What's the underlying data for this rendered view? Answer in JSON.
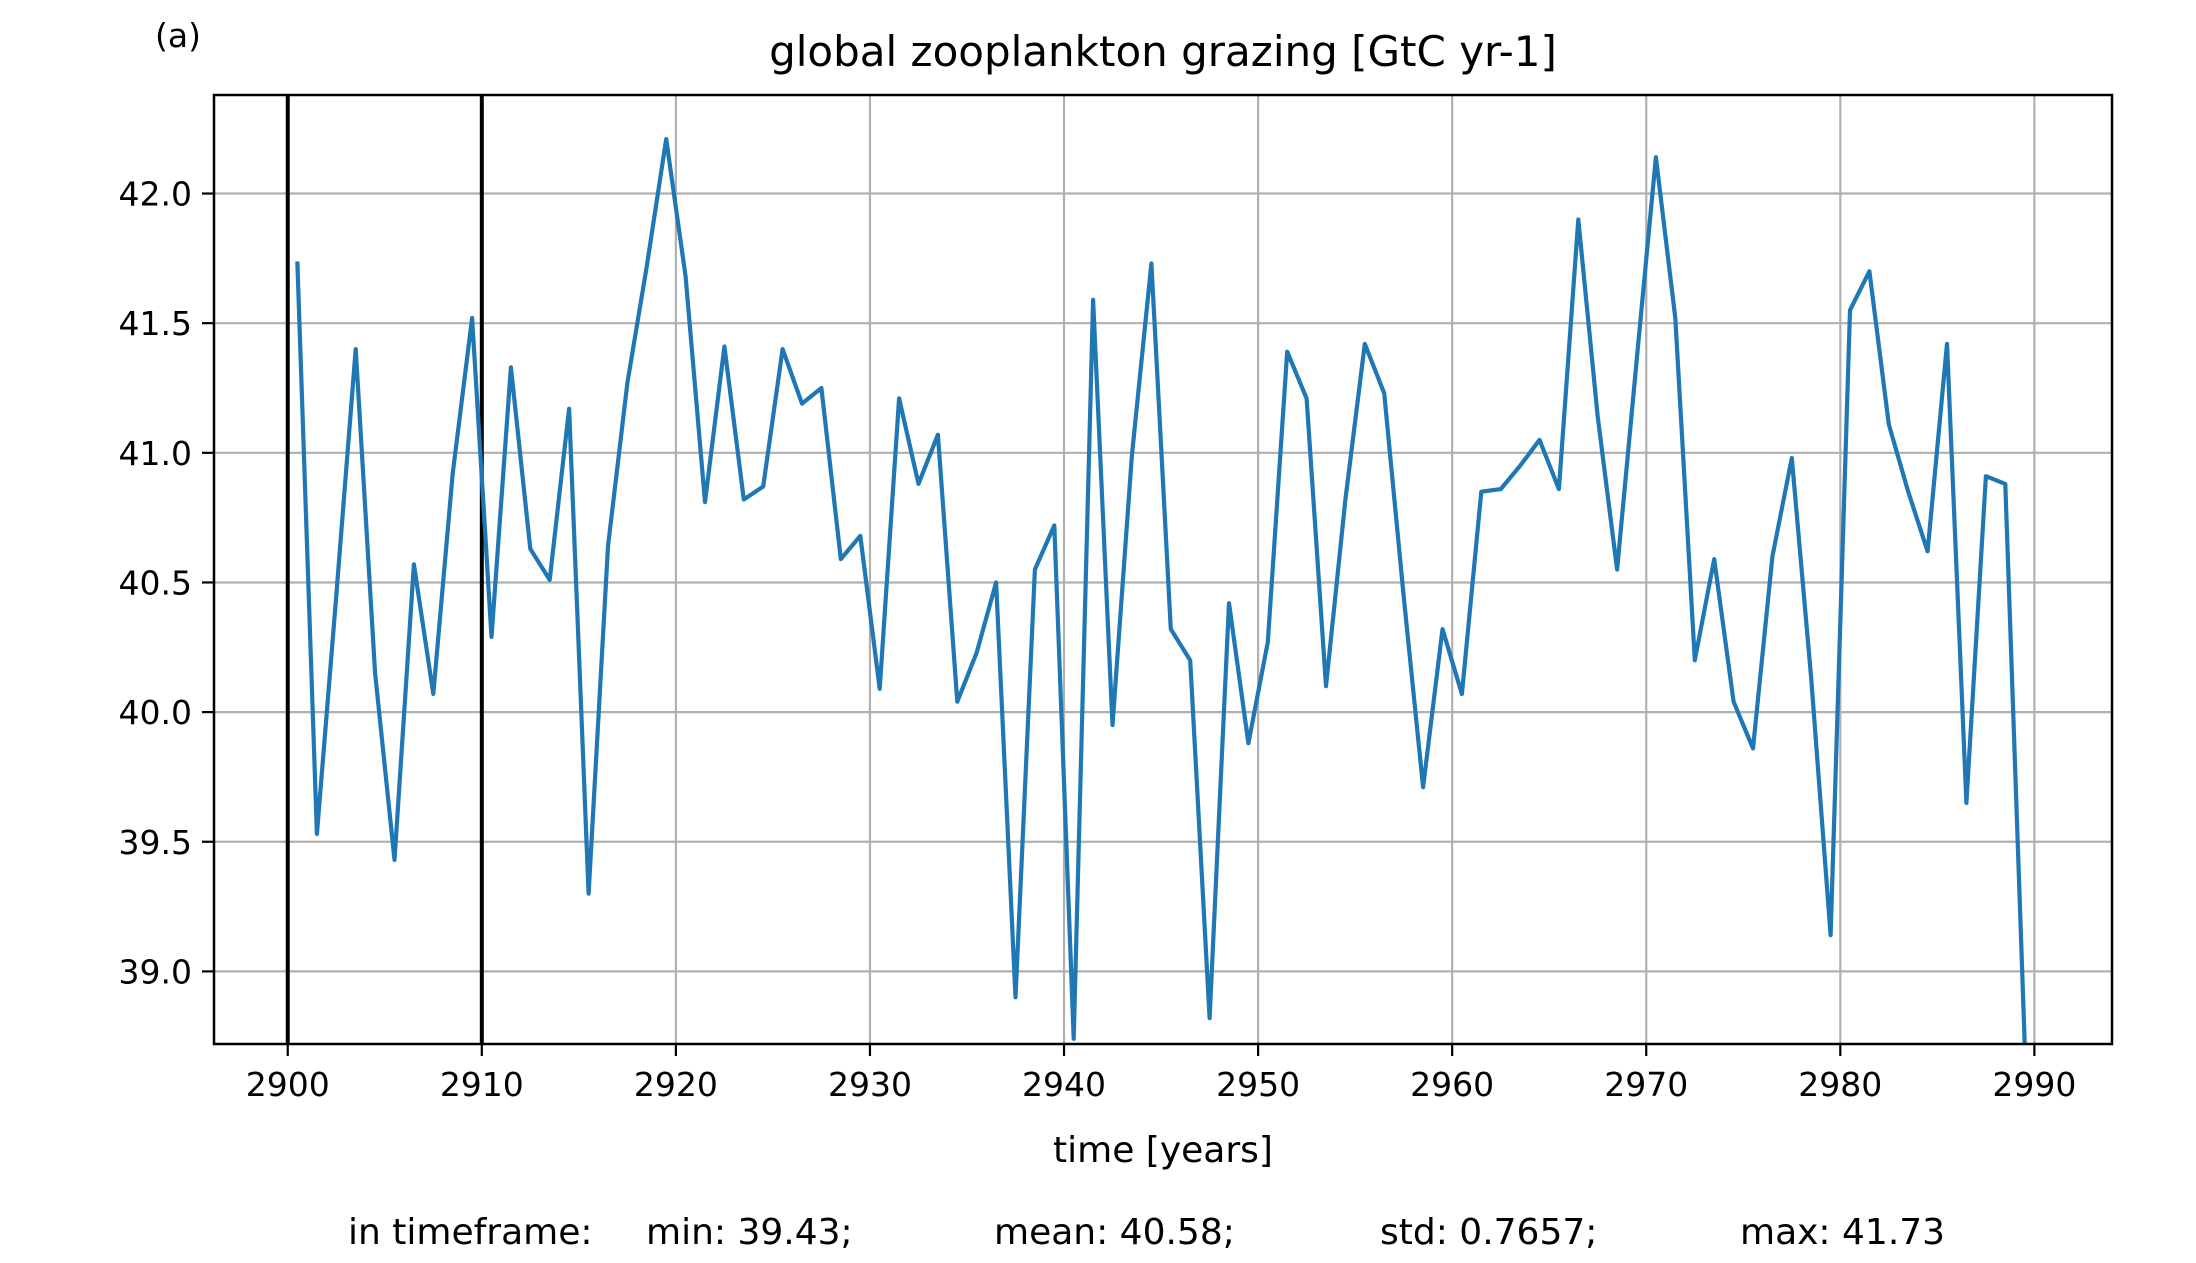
{
  "panel_label": "(a)",
  "stats": {
    "prefix": "in timeframe:",
    "min": "min: 39.43;",
    "mean": "mean: 40.58;",
    "std": "std: 0.7657;",
    "max": "max: 41.73"
  },
  "colors": {
    "series": "#1f77b4",
    "grid": "#b0b0b0",
    "marker_lines": "#000000"
  },
  "chart_data": {
    "type": "line",
    "title": "global zooplankton grazing [GtC yr-1]",
    "xlabel": "time [years]",
    "ylabel": "",
    "xlim": [
      2896.2,
      2994.0
    ],
    "ylim": [
      38.72,
      42.38
    ],
    "xticks": [
      2900,
      2910,
      2920,
      2930,
      2940,
      2950,
      2960,
      2970,
      2980,
      2990
    ],
    "yticks": [
      39.0,
      39.5,
      40.0,
      40.5,
      41.0,
      41.5,
      42.0
    ],
    "ytick_labels": [
      "39.0",
      "39.5",
      "40.0",
      "40.5",
      "41.0",
      "41.5",
      "42.0"
    ],
    "grid": true,
    "vertical_lines": [
      2900,
      2910
    ],
    "x": [
      2900.5,
      2901.5,
      2902.5,
      2903.5,
      2904.5,
      2905.5,
      2906.5,
      2907.5,
      2908.5,
      2909.5,
      2910.5,
      2911.5,
      2912.5,
      2913.5,
      2914.5,
      2915.5,
      2916.5,
      2917.5,
      2918.5,
      2919.5,
      2920.5,
      2921.5,
      2922.5,
      2923.5,
      2924.5,
      2925.5,
      2926.5,
      2927.5,
      2928.5,
      2929.5,
      2930.5,
      2931.5,
      2932.5,
      2933.5,
      2934.5,
      2935.5,
      2936.5,
      2937.5,
      2938.5,
      2939.5,
      2940.5,
      2941.5,
      2942.5,
      2943.5,
      2944.5,
      2945.5,
      2946.5,
      2947.5,
      2948.5,
      2949.5,
      2950.5,
      2951.5,
      2952.5,
      2953.5,
      2954.5,
      2955.5,
      2956.5,
      2957.5,
      2958.5,
      2959.5,
      2960.5,
      2961.5,
      2962.5,
      2963.5,
      2964.5,
      2965.5,
      2966.5,
      2967.5,
      2968.5,
      2969.5,
      2970.5,
      2971.5,
      2972.5,
      2973.5,
      2974.5,
      2975.5,
      2976.5,
      2977.5,
      2978.5,
      2979.5,
      2980.5,
      2981.5,
      2982.5,
      2983.5,
      2984.5,
      2985.5,
      2986.5,
      2987.5,
      2988.5,
      2989.5
    ],
    "series": [
      {
        "values": [
          41.73,
          39.53,
          40.45,
          41.4,
          40.15,
          39.43,
          40.57,
          40.07,
          40.92,
          41.52,
          40.29,
          41.33,
          40.63,
          40.51,
          41.17,
          39.3,
          40.64,
          41.27,
          41.72,
          42.21,
          41.68,
          40.81,
          41.41,
          40.82,
          40.87,
          41.4,
          41.19,
          41.25,
          40.59,
          40.68,
          40.09,
          41.21,
          40.88,
          41.07,
          40.04,
          40.23,
          40.5,
          38.9,
          40.55,
          40.72,
          38.74,
          41.59,
          39.95,
          40.99,
          41.73,
          40.32,
          40.2,
          38.82,
          40.42,
          39.88,
          40.27,
          41.39,
          41.21,
          40.1,
          40.82,
          41.42,
          41.23,
          40.45,
          39.71,
          40.32,
          40.07,
          40.85,
          40.86,
          40.95,
          41.05,
          40.86,
          41.9,
          41.14,
          40.55,
          41.35,
          42.14,
          41.52,
          40.2,
          40.59,
          40.04,
          39.86,
          40.6,
          40.98,
          40.13,
          39.14,
          41.55,
          41.7,
          41.11,
          40.85,
          40.62,
          41.42,
          39.65,
          40.91,
          40.88,
          38.72
        ]
      }
    ]
  }
}
